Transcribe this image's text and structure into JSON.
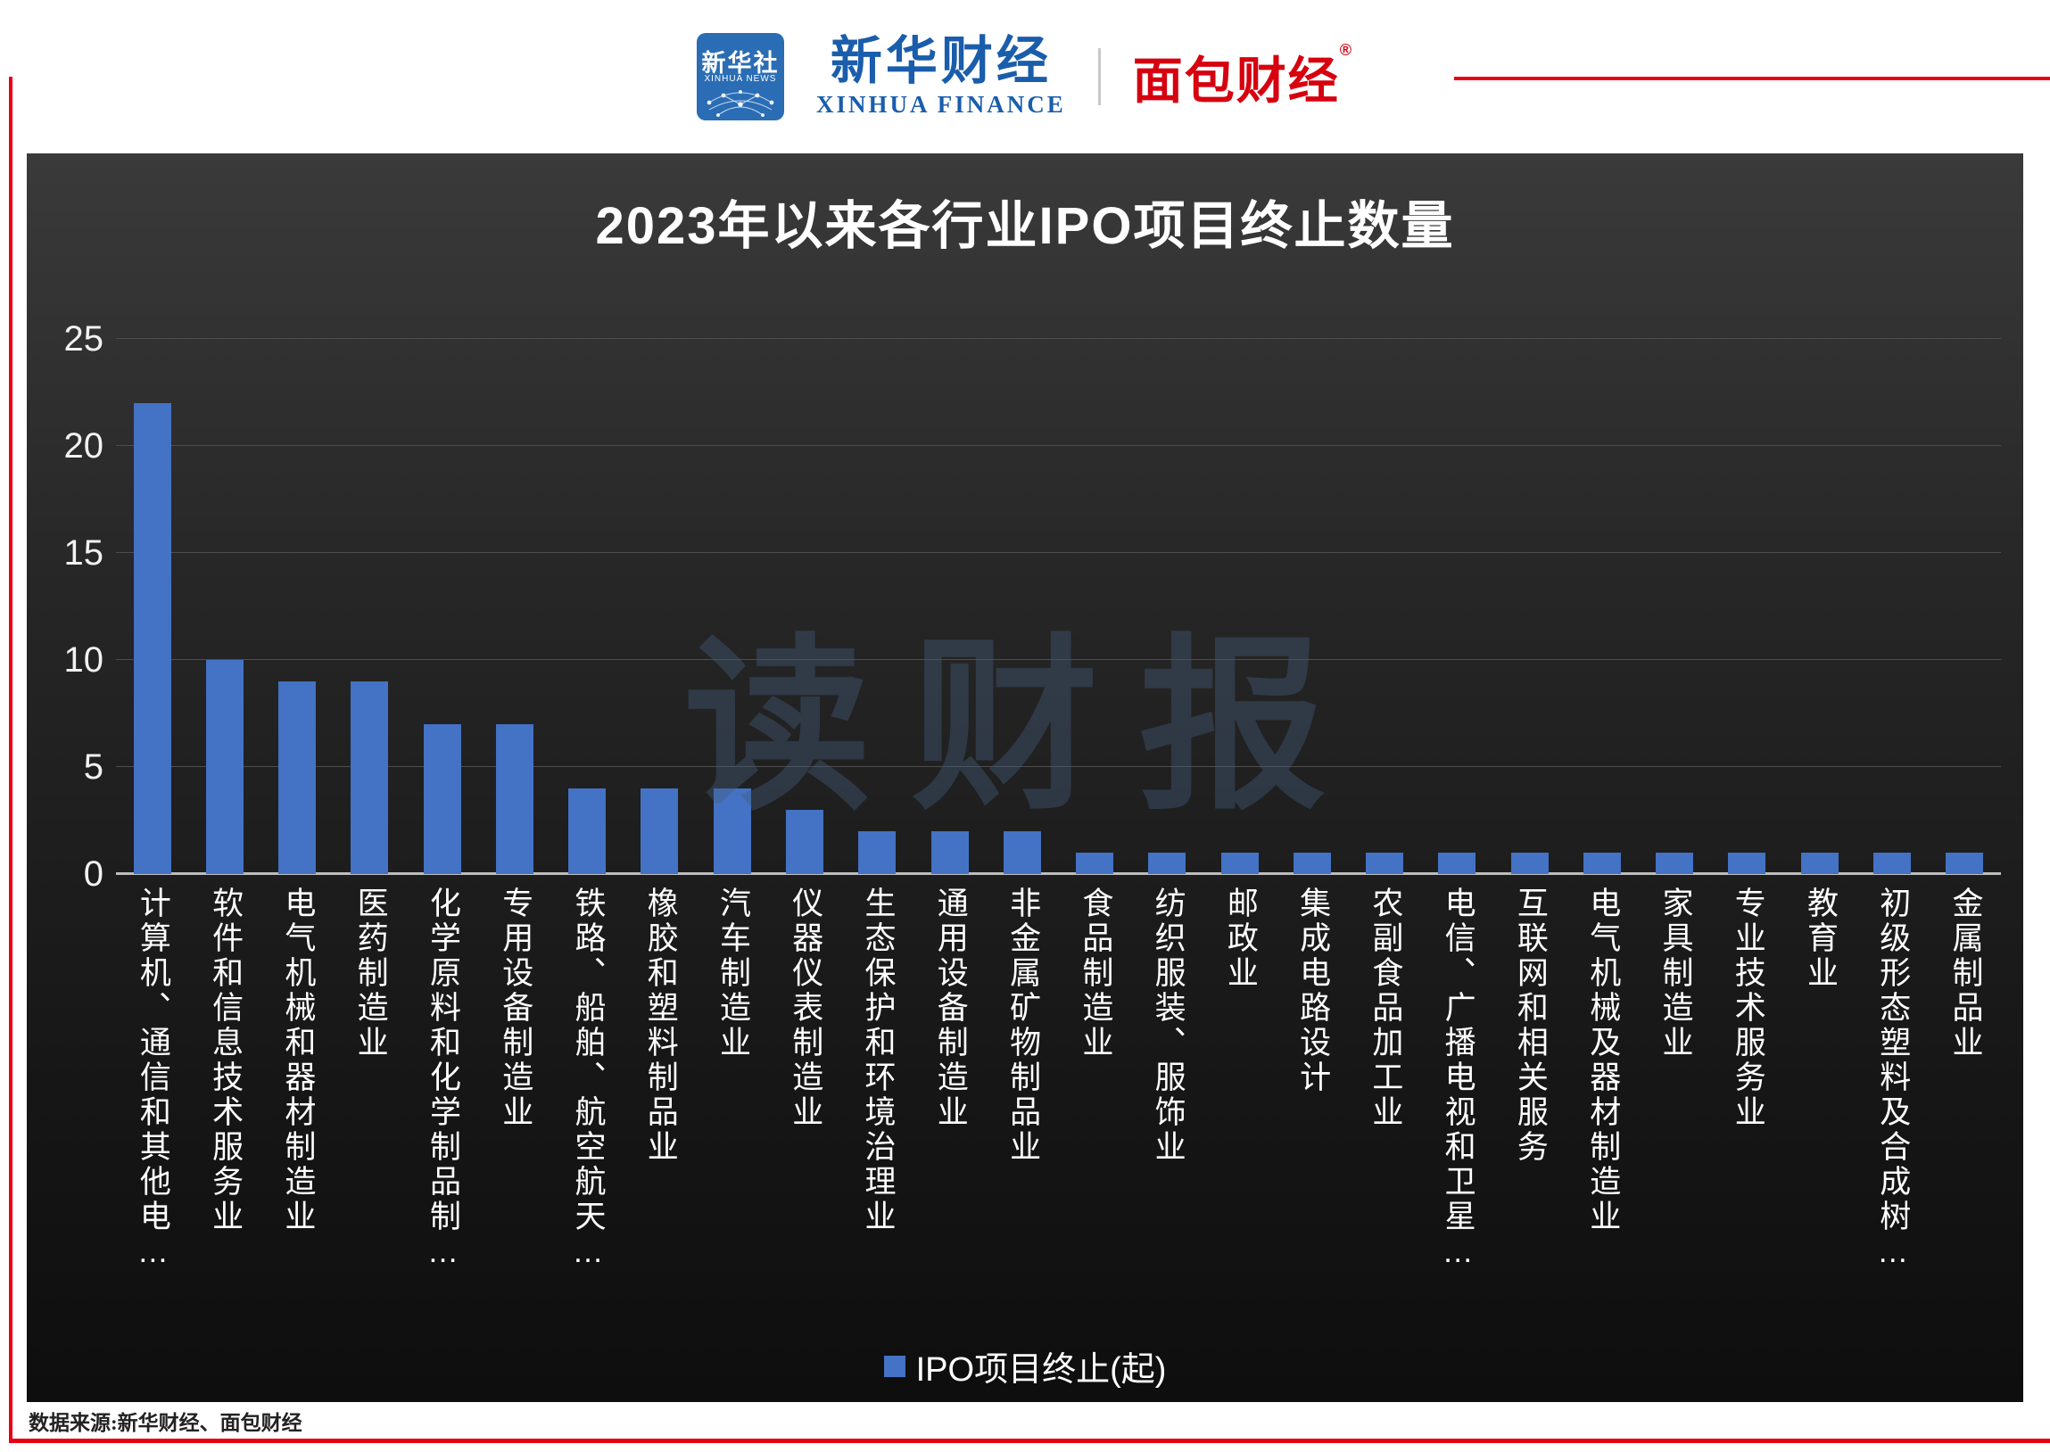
{
  "header": {
    "xinhua_news_logo": {
      "cn": "新华社",
      "en": "XINHUA NEWS"
    },
    "xinhua_finance": {
      "cn": "新华财经",
      "en": "XINHUA FINANCE"
    },
    "bread_finance": {
      "cn": "面包财经",
      "reg_mark": "®"
    }
  },
  "chart_data": {
    "type": "bar",
    "title": "2023年以来各行业IPO项目终止数量",
    "legend": "IPO项目终止(起)",
    "watermark": "读财报",
    "categories": [
      "计算机、通信和其他电…",
      "软件和信息技术服务业",
      "电气机械和器材制造业",
      "医药制造业",
      "化学原料和化学制品制…",
      "专用设备制造业",
      "铁路、船舶、航空航天…",
      "橡胶和塑料制品业",
      "汽车制造业",
      "仪器仪表制造业",
      "生态保护和环境治理业",
      "通用设备制造业",
      "非金属矿物制品业",
      "食品制造业",
      "纺织服装、服饰业",
      "邮政业",
      "集成电路设计",
      "农副食品加工业",
      "电信、广播电视和卫星…",
      "互联网和相关服务",
      "电气机械及器材制造业",
      "家具制造业",
      "专业技术服务业",
      "教育业",
      "初级形态塑料及合成树…",
      "金属制品业"
    ],
    "values": [
      22,
      10,
      9,
      9,
      7,
      7,
      4,
      4,
      4,
      3,
      2,
      2,
      2,
      1,
      1,
      1,
      1,
      1,
      1,
      1,
      1,
      1,
      1,
      1,
      1,
      1
    ],
    "yticks": [
      0,
      5,
      10,
      15,
      20,
      25
    ],
    "ylim": [
      0,
      25
    ],
    "bar_color": "#4472c4",
    "grid": true,
    "legend_position": "bottom"
  },
  "footer": {
    "source": "数据来源:新华财经、面包财经"
  },
  "colors": {
    "accent_red": "#e60012",
    "xinhua_blue": "#1a5dab",
    "bread_red": "#d6000f",
    "bar_blue": "#4472c4"
  }
}
